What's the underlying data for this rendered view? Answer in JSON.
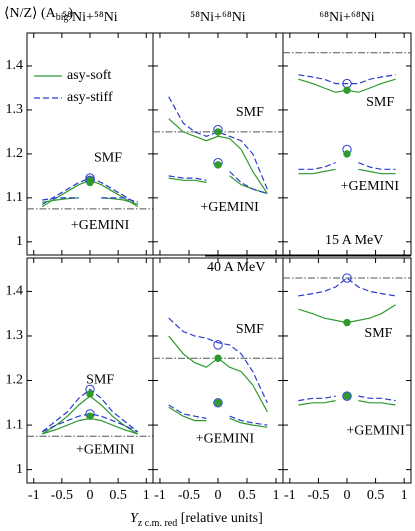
{
  "y_label": {
    "main": "⟨N/Z⟩ (A",
    "sub": "big",
    "end": ")"
  },
  "x_label": {
    "main": "Y",
    "sub": "z c.m. red",
    "end": " [relative units]"
  },
  "legend": [
    {
      "name": "asy-soft",
      "color": "#2e9a2e",
      "dashed": false
    },
    {
      "name": "asy-stiff",
      "color": "#2a3bd0",
      "dashed": true
    }
  ],
  "energy_labels": [
    "15 A MeV",
    "40 A MeV"
  ],
  "chart_data": [
    {
      "type": "line",
      "title": "⁵⁸Ni+⁵⁸Ni",
      "x": [
        -0.85,
        -0.6,
        -0.4,
        -0.2,
        0,
        0.2,
        0.4,
        0.6,
        0.85
      ],
      "xlim": [
        -1.12,
        1.12
      ],
      "xticks": [
        -1,
        -0.5,
        0,
        0.5,
        1
      ],
      "ylim": [
        0.97,
        1.475
      ],
      "yticks": [
        1,
        1.1,
        1.2,
        1.3,
        1.4
      ],
      "reference": 1.075,
      "annotations": [
        "SMF",
        "+GEMINI"
      ],
      "series": [
        {
          "color": "#2e9a2e",
          "dashed": false,
          "values": [
            1.08,
            1.1,
            1.115,
            1.13,
            1.14,
            1.13,
            1.115,
            1.1,
            1.08
          ]
        },
        {
          "color": "#2a3bd0",
          "dashed": true,
          "values": [
            1.085,
            1.105,
            1.12,
            1.135,
            1.145,
            1.135,
            1.12,
            1.105,
            1.085
          ]
        },
        {
          "color": "#2e9a2e",
          "dashed": false,
          "values": [
            1.09,
            1.095,
            1.098,
            1.1,
            null,
            1.1,
            1.098,
            1.095,
            1.085
          ]
        },
        {
          "color": "#2a3bd0",
          "dashed": true,
          "values": [
            1.095,
            1.1,
            1.1,
            1.1,
            null,
            1.1,
            1.1,
            1.1,
            1.09
          ]
        }
      ],
      "markers": [
        {
          "value": 1.145,
          "color": "#2a3bd0",
          "filled": false
        },
        {
          "value": 1.14,
          "color": "#2e9a2e",
          "filled": true
        },
        {
          "value": 1.14,
          "color": "#2a3bd0",
          "filled": false
        },
        {
          "value": 1.135,
          "color": "#2e9a2e",
          "filled": true
        }
      ]
    },
    {
      "type": "line",
      "title": "⁵⁸Ni+⁶⁸Ni",
      "x": [
        -0.85,
        -0.6,
        -0.4,
        -0.2,
        0,
        0.2,
        0.4,
        0.6,
        0.85
      ],
      "xlim": [
        -1.12,
        1.12
      ],
      "xticks": [
        -1,
        -0.5,
        0,
        0.5,
        1
      ],
      "ylim": [
        0.97,
        1.475
      ],
      "yticks": [
        1,
        1.1,
        1.2,
        1.3,
        1.4
      ],
      "reference": 1.25,
      "annotations": [
        "SMF",
        "+GEMINI"
      ],
      "series": [
        {
          "color": "#2e9a2e",
          "dashed": false,
          "values": [
            1.28,
            1.25,
            1.24,
            1.23,
            1.24,
            1.235,
            1.21,
            1.16,
            1.11
          ]
        },
        {
          "color": "#2a3bd0",
          "dashed": true,
          "values": [
            1.33,
            1.27,
            1.25,
            1.24,
            1.25,
            1.24,
            1.23,
            1.2,
            1.12
          ]
        },
        {
          "color": "#2e9a2e",
          "dashed": false,
          "values": [
            1.145,
            1.14,
            1.14,
            1.135,
            null,
            1.15,
            1.13,
            1.12,
            1.11
          ]
        },
        {
          "color": "#2a3bd0",
          "dashed": true,
          "values": [
            1.15,
            1.145,
            1.145,
            1.14,
            null,
            1.16,
            1.135,
            1.12,
            1.11
          ]
        }
      ],
      "markers": [
        {
          "value": 1.255,
          "color": "#2a3bd0",
          "filled": false
        },
        {
          "value": 1.25,
          "color": "#2e9a2e",
          "filled": true
        },
        {
          "value": 1.18,
          "color": "#2a3bd0",
          "filled": false
        },
        {
          "value": 1.175,
          "color": "#2e9a2e",
          "filled": true
        }
      ]
    },
    {
      "type": "line",
      "title": "⁶⁸Ni+⁶⁸Ni",
      "x": [
        -0.85,
        -0.6,
        -0.4,
        -0.2,
        0,
        0.2,
        0.4,
        0.6,
        0.85
      ],
      "xlim": [
        -1.12,
        1.12
      ],
      "xticks": [
        -1,
        -0.5,
        0,
        0.5,
        1
      ],
      "ylim": [
        0.97,
        1.475
      ],
      "yticks": [
        1,
        1.1,
        1.2,
        1.3,
        1.4
      ],
      "reference": 1.43,
      "annotations": [
        "SMF",
        "+GEMINI"
      ],
      "series": [
        {
          "color": "#2e9a2e",
          "dashed": false,
          "values": [
            1.37,
            1.36,
            1.35,
            1.34,
            1.345,
            1.34,
            1.35,
            1.36,
            1.37
          ]
        },
        {
          "color": "#2a3bd0",
          "dashed": true,
          "values": [
            1.38,
            1.375,
            1.37,
            1.36,
            1.36,
            1.36,
            1.37,
            1.375,
            1.38
          ]
        },
        {
          "color": "#2e9a2e",
          "dashed": false,
          "values": [
            1.155,
            1.155,
            1.16,
            1.165,
            null,
            1.165,
            1.16,
            1.155,
            1.155
          ]
        },
        {
          "color": "#2a3bd0",
          "dashed": true,
          "values": [
            1.165,
            1.165,
            1.17,
            1.18,
            null,
            1.18,
            1.17,
            1.165,
            1.165
          ]
        }
      ],
      "markers": [
        {
          "value": 1.36,
          "color": "#2a3bd0",
          "filled": false
        },
        {
          "value": 1.345,
          "color": "#2e9a2e",
          "filled": true
        },
        {
          "value": 1.21,
          "color": "#2a3bd0",
          "filled": false
        },
        {
          "value": 1.2,
          "color": "#2e9a2e",
          "filled": true
        }
      ]
    },
    {
      "type": "line",
      "x": [
        -0.85,
        -0.6,
        -0.4,
        -0.2,
        0,
        0.2,
        0.4,
        0.6,
        0.85
      ],
      "xlim": [
        -1.12,
        1.12
      ],
      "xticks": [
        -1,
        -0.5,
        0,
        0.5,
        1
      ],
      "ylim": [
        0.97,
        1.475
      ],
      "yticks": [
        1,
        1.1,
        1.2,
        1.3,
        1.4
      ],
      "reference": 1.075,
      "annotations": [
        "SMF",
        "+GEMINI"
      ],
      "series": [
        {
          "color": "#2e9a2e",
          "dashed": false,
          "values": [
            1.08,
            1.1,
            1.12,
            1.145,
            1.165,
            1.145,
            1.12,
            1.1,
            1.08
          ]
        },
        {
          "color": "#2a3bd0",
          "dashed": true,
          "values": [
            1.085,
            1.11,
            1.13,
            1.16,
            1.18,
            1.16,
            1.13,
            1.11,
            1.085
          ]
        },
        {
          "color": "#2e9a2e",
          "dashed": false,
          "values": [
            1.08,
            1.09,
            1.1,
            1.11,
            1.115,
            1.11,
            1.1,
            1.09,
            1.08
          ]
        },
        {
          "color": "#2a3bd0",
          "dashed": true,
          "values": [
            1.085,
            1.1,
            1.11,
            1.12,
            1.125,
            1.12,
            1.11,
            1.1,
            1.085
          ]
        }
      ],
      "markers": [
        {
          "value": 1.18,
          "color": "#2a3bd0",
          "filled": false
        },
        {
          "value": 1.17,
          "color": "#2e9a2e",
          "filled": true
        },
        {
          "value": 1.125,
          "color": "#2a3bd0",
          "filled": false
        },
        {
          "value": 1.12,
          "color": "#2e9a2e",
          "filled": true
        }
      ]
    },
    {
      "type": "line",
      "x": [
        -0.85,
        -0.6,
        -0.4,
        -0.2,
        0,
        0.2,
        0.4,
        0.6,
        0.85
      ],
      "xlim": [
        -1.12,
        1.12
      ],
      "xticks": [
        -1,
        -0.5,
        0,
        0.5,
        1
      ],
      "ylim": [
        0.97,
        1.475
      ],
      "yticks": [
        1,
        1.1,
        1.2,
        1.3,
        1.4
      ],
      "reference": 1.25,
      "annotations": [
        "SMF",
        "+GEMINI"
      ],
      "series": [
        {
          "color": "#2e9a2e",
          "dashed": false,
          "values": [
            1.3,
            1.26,
            1.24,
            1.23,
            1.25,
            1.23,
            1.22,
            1.19,
            1.13
          ]
        },
        {
          "color": "#2a3bd0",
          "dashed": true,
          "values": [
            1.34,
            1.31,
            1.3,
            1.295,
            1.285,
            1.28,
            1.26,
            1.22,
            1.15
          ]
        },
        {
          "color": "#2e9a2e",
          "dashed": false,
          "values": [
            1.14,
            1.12,
            1.11,
            1.11,
            null,
            1.115,
            1.105,
            1.1,
            1.095
          ]
        },
        {
          "color": "#2a3bd0",
          "dashed": true,
          "values": [
            1.145,
            1.125,
            1.12,
            1.115,
            null,
            1.12,
            1.11,
            1.105,
            1.1
          ]
        }
      ],
      "markers": [
        {
          "value": 1.28,
          "color": "#2a3bd0",
          "filled": false
        },
        {
          "value": 1.25,
          "color": "#2e9a2e",
          "filled": true
        },
        {
          "value": 1.15,
          "color": "#2a3bd0",
          "filled": false
        },
        {
          "value": 1.15,
          "color": "#2e9a2e",
          "filled": true
        }
      ]
    },
    {
      "type": "line",
      "x": [
        -0.85,
        -0.6,
        -0.4,
        -0.2,
        0,
        0.2,
        0.4,
        0.6,
        0.85
      ],
      "xlim": [
        -1.12,
        1.12
      ],
      "xticks": [
        -1,
        -0.5,
        0,
        0.5,
        1
      ],
      "ylim": [
        0.97,
        1.475
      ],
      "yticks": [
        1,
        1.1,
        1.2,
        1.3,
        1.4
      ],
      "reference": 1.43,
      "annotations": [
        "SMF",
        "+GEMINI"
      ],
      "series": [
        {
          "color": "#2e9a2e",
          "dashed": false,
          "values": [
            1.36,
            1.35,
            1.34,
            1.335,
            1.33,
            1.335,
            1.34,
            1.35,
            1.37
          ]
        },
        {
          "color": "#2a3bd0",
          "dashed": true,
          "values": [
            1.39,
            1.395,
            1.4,
            1.41,
            1.43,
            1.41,
            1.4,
            1.395,
            1.39
          ]
        },
        {
          "color": "#2e9a2e",
          "dashed": false,
          "values": [
            1.145,
            1.15,
            1.15,
            1.155,
            null,
            1.155,
            1.15,
            1.15,
            1.145
          ]
        },
        {
          "color": "#2a3bd0",
          "dashed": true,
          "values": [
            1.155,
            1.16,
            1.16,
            1.165,
            null,
            1.165,
            1.16,
            1.16,
            1.155
          ]
        }
      ],
      "markers": [
        {
          "value": 1.43,
          "color": "#2a3bd0",
          "filled": false
        },
        {
          "value": 1.33,
          "color": "#2e9a2e",
          "filled": true
        },
        {
          "value": 1.165,
          "color": "#2a3bd0",
          "filled": false
        },
        {
          "value": 1.165,
          "color": "#2e9a2e",
          "filled": true
        }
      ]
    }
  ]
}
